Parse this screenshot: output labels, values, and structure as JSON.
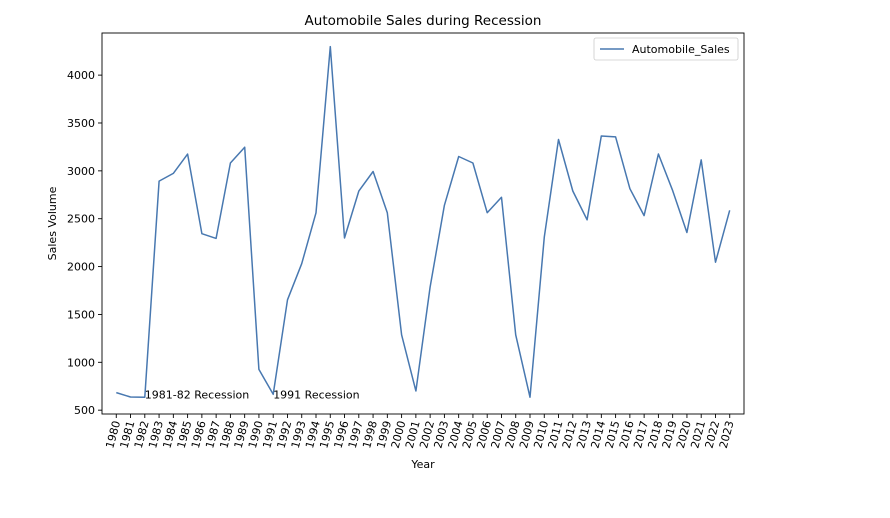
{
  "chart_data": {
    "type": "line",
    "title": "Automobile Sales during Recession",
    "xlabel": "Year",
    "ylabel": "Sales Volume",
    "ylim": [
      460,
      4440
    ],
    "yticks": [
      500,
      1000,
      1500,
      2000,
      2500,
      3000,
      3500,
      4000
    ],
    "xlim": [
      1979,
      2024
    ],
    "grid": false,
    "legend_position": "top-right",
    "series": [
      {
        "name": "Automobile_Sales",
        "color": "#4878b0",
        "x": [
          "1980",
          "1981",
          "1982",
          "1983",
          "1984",
          "1985",
          "1986",
          "1987",
          "1988",
          "1989",
          "1990",
          "1991",
          "1992",
          "1993",
          "1994",
          "1995",
          "1996",
          "1997",
          "1998",
          "1999",
          "2000",
          "2001",
          "2002",
          "2003",
          "2004",
          "2005",
          "2006",
          "2007",
          "2008",
          "2009",
          "2010",
          "2011",
          "2012",
          "2013",
          "2014",
          "2015",
          "2016",
          "2017",
          "2018",
          "2019",
          "2020",
          "2021",
          "2022",
          "2023"
        ],
        "values": [
          684,
          638,
          636,
          2893,
          2973,
          3175,
          2343,
          2294,
          3082,
          3247,
          926,
          666,
          1653,
          2030,
          2562,
          4298,
          2299,
          2788,
          2993,
          2563,
          1287,
          700,
          1786,
          2640,
          3150,
          3082,
          2563,
          2724,
          1287,
          635,
          2309,
          3328,
          2790,
          2489,
          3364,
          3355,
          2814,
          2533,
          3176,
          2793,
          2356,
          3114,
          2046,
          2588
        ]
      }
    ],
    "annotations": [
      {
        "text": "1981-82 Recession",
        "x": "1982",
        "y": 645
      },
      {
        "text": "1991 Recession",
        "x": "1991",
        "y": 645
      }
    ]
  }
}
